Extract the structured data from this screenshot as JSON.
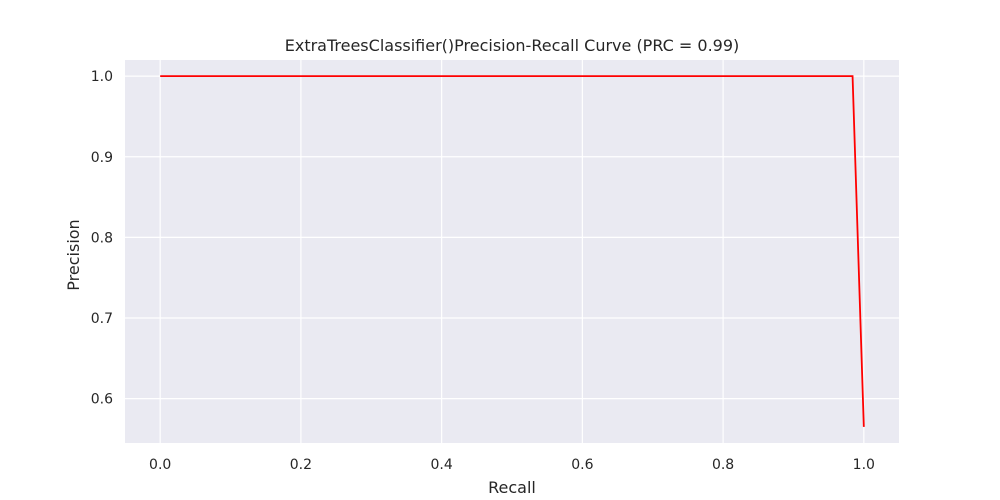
{
  "chart_data": {
    "type": "line",
    "title": "ExtraTreesClassifier()Precision-Recall Curve (PRC = 0.99)",
    "xlabel": "Recall",
    "ylabel": "Precision",
    "xlim": [
      -0.05,
      1.05
    ],
    "ylim": [
      0.545,
      1.02
    ],
    "xticks": [
      0.0,
      0.2,
      0.4,
      0.6,
      0.8,
      1.0
    ],
    "xtick_labels": [
      "0.0",
      "0.2",
      "0.4",
      "0.6",
      "0.8",
      "1.0"
    ],
    "yticks": [
      0.6,
      0.7,
      0.8,
      0.9,
      1.0
    ],
    "ytick_labels": [
      "0.6",
      "0.7",
      "0.8",
      "0.9",
      "1.0"
    ],
    "grid": true,
    "background_color": "#eaeaf2",
    "series": [
      {
        "color": "#ff0000",
        "x": [
          0.0,
          0.984,
          1.0
        ],
        "y": [
          1.0,
          1.0,
          0.565
        ]
      }
    ]
  }
}
